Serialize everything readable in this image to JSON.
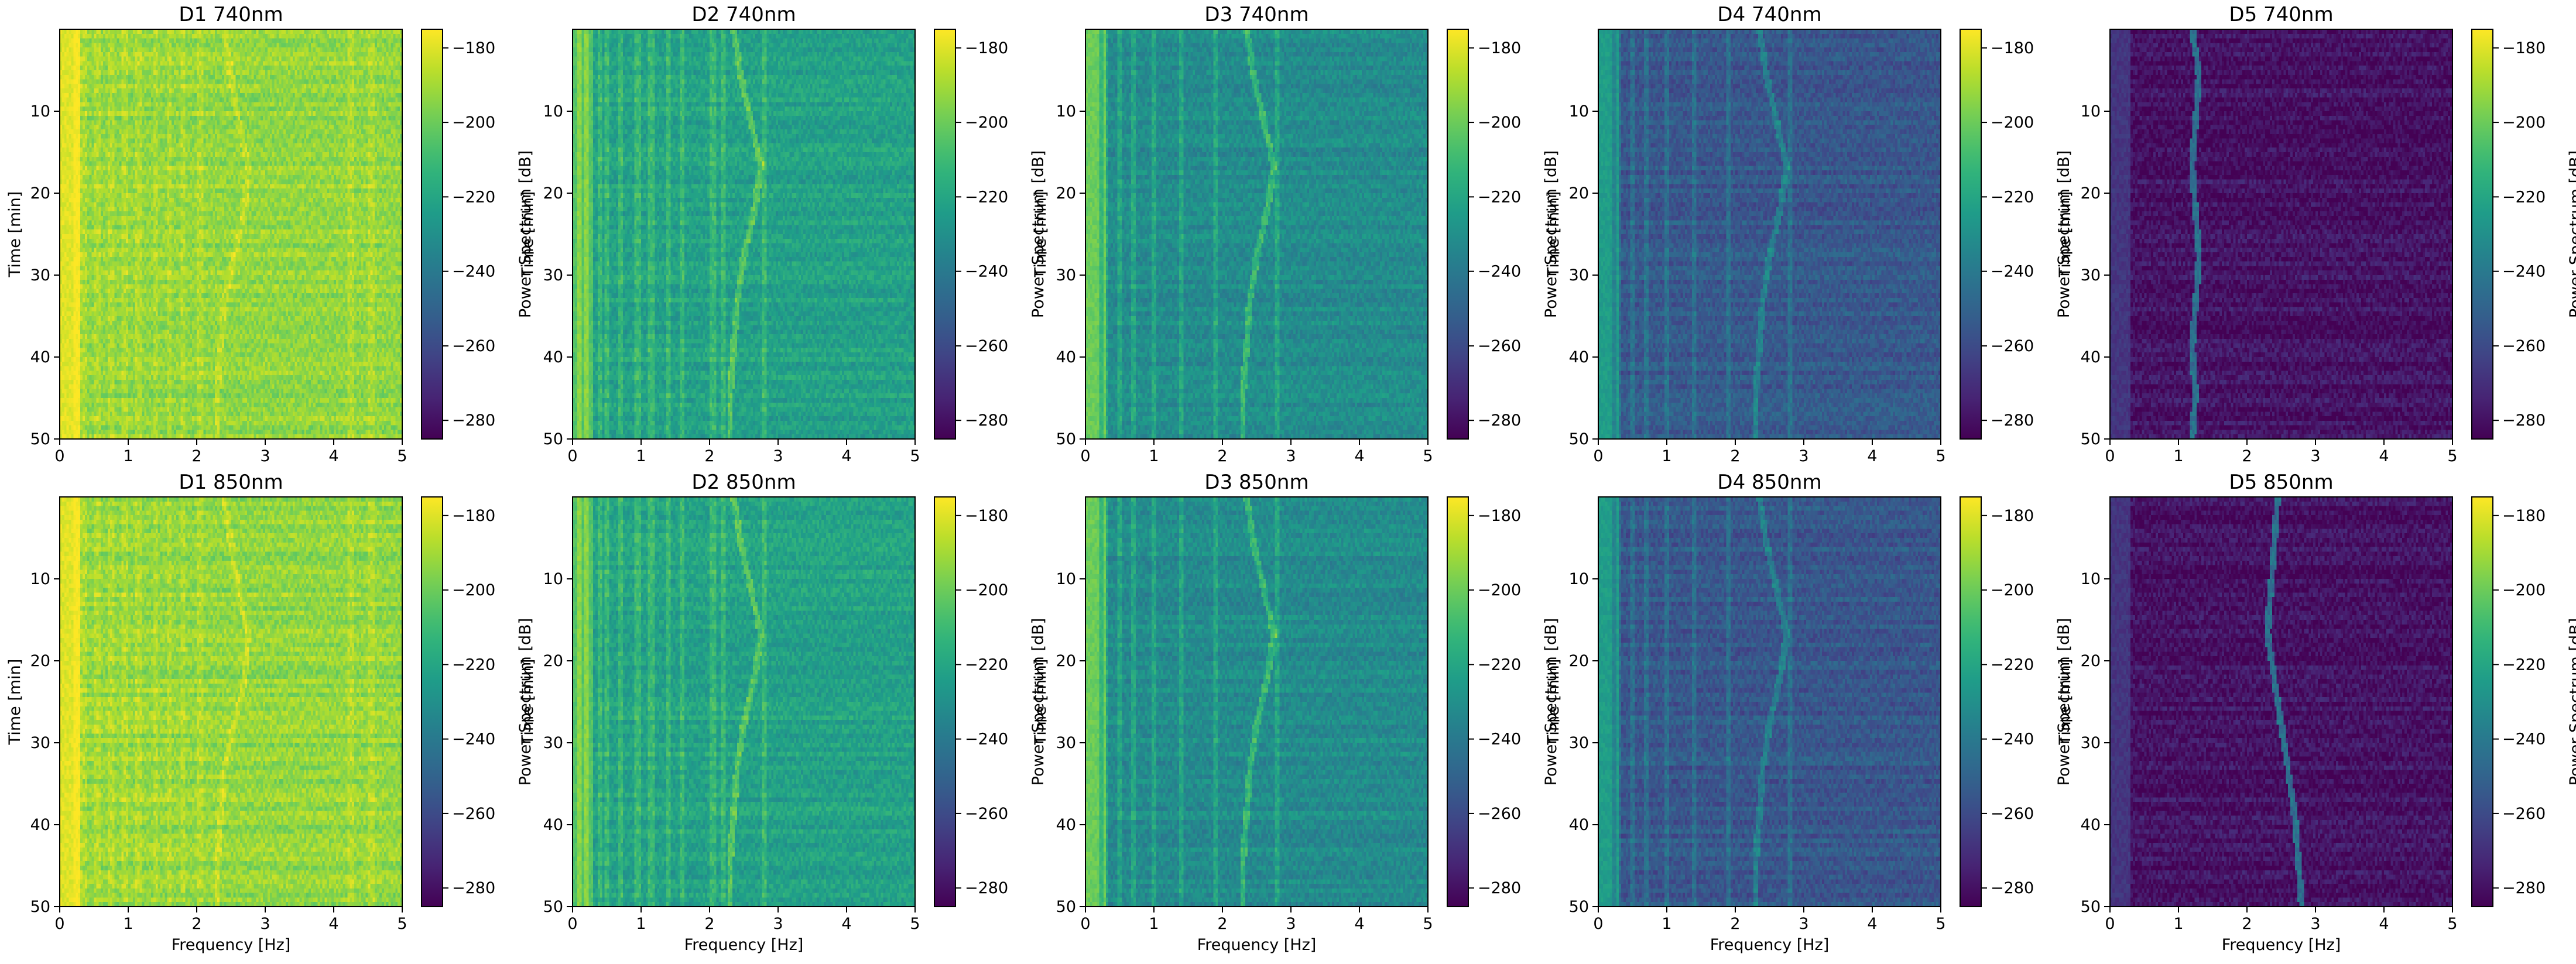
{
  "chart_data": {
    "type": "heatmap",
    "figure_title": "",
    "xlabel": "Frequency [Hz]",
    "ylabel": "Time [min]",
    "colorbar_label": "Power Spectrum [dB]",
    "colormap": "viridis",
    "xlim": [
      0,
      5
    ],
    "ylim": [
      50,
      0
    ],
    "clim": [
      -285,
      -175
    ],
    "x_ticks": [
      0,
      1,
      2,
      3,
      4,
      5
    ],
    "y_ticks": [
      10,
      20,
      30,
      40,
      50
    ],
    "colorbar_ticks": [
      -180,
      -200,
      -220,
      -240,
      -260,
      -280
    ],
    "colorbar_tick_labels": [
      "−180",
      "−200",
      "−220",
      "−240",
      "−260",
      "−280"
    ],
    "panels": [
      {
        "title": "D1 740nm",
        "row": 0,
        "col": 0,
        "background_db": -193,
        "low_freq_band_db": -180,
        "line_strength_db": 8,
        "fixed_lines_hz": [
          0.25,
          0.35,
          0.55,
          0.75,
          0.95,
          1.15,
          1.4,
          1.6,
          1.8,
          2.05,
          4.25,
          4.55
        ],
        "drifting_line_hz": [
          2.4,
          2.5,
          2.6,
          2.75,
          2.7,
          2.55,
          2.4,
          2.35,
          2.3,
          2.3
        ]
      },
      {
        "title": "D2 740nm",
        "row": 0,
        "col": 1,
        "background_db": -222,
        "low_freq_band_db": -205,
        "line_strength_db": 18,
        "fixed_lines_hz": [
          0.1,
          0.2,
          0.4,
          0.5,
          0.7,
          0.95,
          1.15,
          1.4,
          1.6,
          2.05,
          2.2,
          2.8
        ],
        "drifting_line_hz": [
          2.35,
          2.45,
          2.6,
          2.75,
          2.65,
          2.5,
          2.4,
          2.35,
          2.3,
          2.3
        ]
      },
      {
        "title": "D3 740nm",
        "row": 0,
        "col": 2,
        "background_db": -232,
        "low_freq_band_db": -212,
        "line_strength_db": 20,
        "fixed_lines_hz": [
          0.05,
          0.15,
          0.3,
          0.5,
          0.7,
          1.0,
          1.4,
          1.9,
          2.8
        ],
        "drifting_line_hz": [
          2.35,
          2.45,
          2.6,
          2.75,
          2.65,
          2.5,
          2.4,
          2.35,
          2.3,
          2.3
        ]
      },
      {
        "title": "D4 740nm",
        "row": 0,
        "col": 3,
        "background_db": -255,
        "low_freq_band_db": -235,
        "line_strength_db": 18,
        "fixed_lines_hz": [
          0.05,
          0.15,
          0.3,
          0.5,
          0.7,
          1.0,
          1.4,
          1.9,
          2.8
        ],
        "drifting_line_hz": [
          2.35,
          2.45,
          2.6,
          2.75,
          2.65,
          2.5,
          2.4,
          2.35,
          2.3,
          2.3
        ]
      },
      {
        "title": "D5 740nm",
        "row": 0,
        "col": 4,
        "background_db": -280,
        "low_freq_band_db": -268,
        "line_strength_db": 35,
        "fixed_lines_hz": [],
        "drifting_line_hz": [
          1.2,
          1.3,
          1.25,
          1.2,
          1.25,
          1.3,
          1.25,
          1.2,
          1.25,
          1.2
        ]
      },
      {
        "title": "D1 850nm",
        "row": 1,
        "col": 0,
        "background_db": -193,
        "low_freq_band_db": -180,
        "line_strength_db": 8,
        "fixed_lines_hz": [
          0.25,
          0.35,
          0.55,
          0.75,
          0.95,
          1.15,
          1.4,
          1.6,
          1.8,
          2.05,
          4.25,
          4.55
        ],
        "drifting_line_hz": [
          2.4,
          2.5,
          2.6,
          2.75,
          2.7,
          2.55,
          2.4,
          2.35,
          2.3,
          2.3
        ]
      },
      {
        "title": "D2 850nm",
        "row": 1,
        "col": 1,
        "background_db": -222,
        "low_freq_band_db": -205,
        "line_strength_db": 18,
        "fixed_lines_hz": [
          0.1,
          0.2,
          0.4,
          0.5,
          0.7,
          0.95,
          1.15,
          1.4,
          1.6,
          2.05,
          2.2,
          2.8
        ],
        "drifting_line_hz": [
          2.35,
          2.45,
          2.6,
          2.75,
          2.65,
          2.5,
          2.4,
          2.35,
          2.3,
          2.3
        ]
      },
      {
        "title": "D3 850nm",
        "row": 1,
        "col": 2,
        "background_db": -232,
        "low_freq_band_db": -212,
        "line_strength_db": 20,
        "fixed_lines_hz": [
          0.05,
          0.15,
          0.3,
          0.5,
          0.7,
          1.0,
          1.4,
          1.9,
          2.8
        ],
        "drifting_line_hz": [
          2.35,
          2.45,
          2.6,
          2.75,
          2.65,
          2.5,
          2.4,
          2.35,
          2.3,
          2.3
        ]
      },
      {
        "title": "D4 850nm",
        "row": 1,
        "col": 3,
        "background_db": -255,
        "low_freq_band_db": -235,
        "line_strength_db": 18,
        "fixed_lines_hz": [
          0.05,
          0.15,
          0.3,
          0.5,
          0.7,
          1.0,
          1.4,
          1.9,
          2.8
        ],
        "drifting_line_hz": [
          2.35,
          2.45,
          2.6,
          2.75,
          2.65,
          2.5,
          2.4,
          2.35,
          2.3,
          2.3
        ]
      },
      {
        "title": "D5 850nm",
        "row": 1,
        "col": 4,
        "background_db": -280,
        "low_freq_band_db": -268,
        "line_strength_db": 35,
        "fixed_lines_hz": [],
        "drifting_line_hz": [
          2.45,
          2.4,
          2.35,
          2.3,
          2.4,
          2.5,
          2.6,
          2.7,
          2.75,
          2.8
        ]
      }
    ]
  }
}
